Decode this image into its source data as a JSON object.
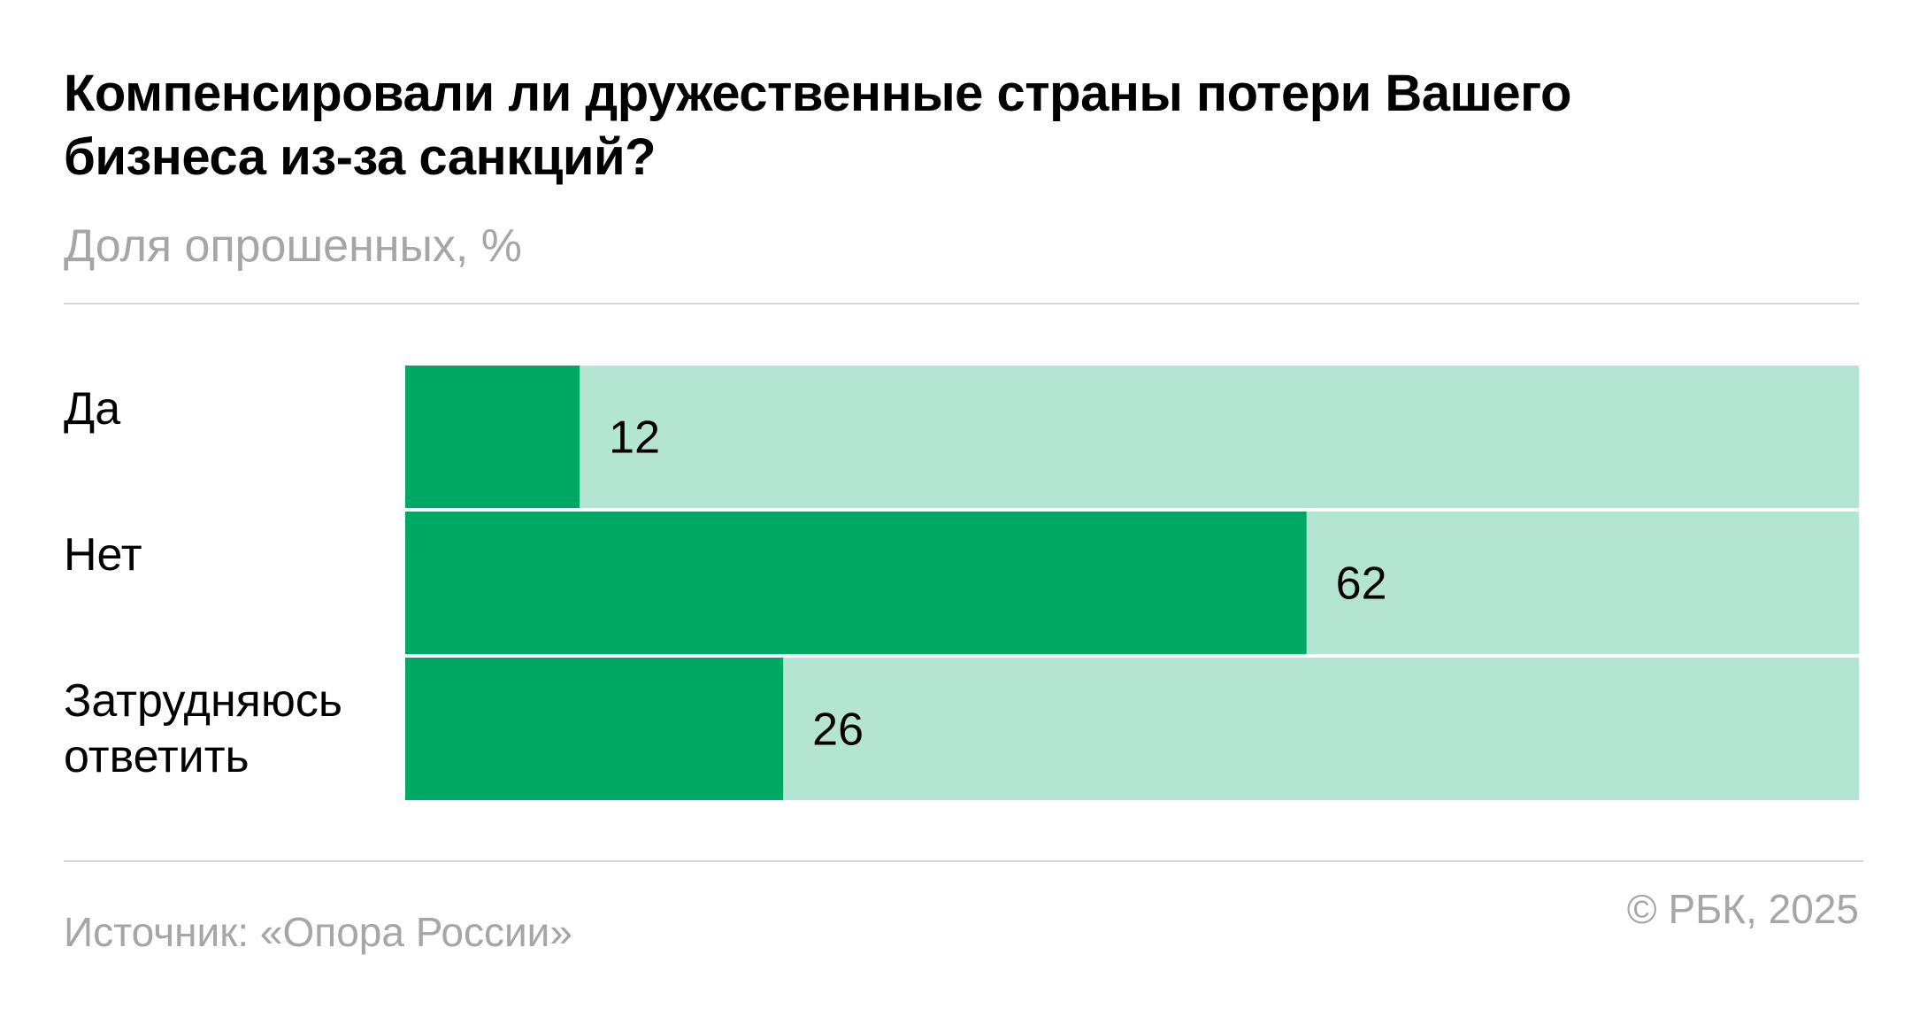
{
  "chart_data": {
    "type": "bar",
    "orientation": "horizontal",
    "title": "Компенсировали ли дружественные страны потери Вашего бизнеса из-за санкций?",
    "subtitle": "Доля опрошенных, %",
    "categories": [
      [
        "Да"
      ],
      [
        "Нет"
      ],
      [
        "Затрудняюсь",
        "ответить"
      ]
    ],
    "values": [
      12,
      62,
      26
    ],
    "xlim": [
      0,
      100
    ],
    "grid": false,
    "colors": {
      "bar": "#00a866",
      "track": "#b4e4d2"
    }
  },
  "footer": {
    "source": "Источник: «Опора России»",
    "credit": "© РБК, 2025"
  }
}
